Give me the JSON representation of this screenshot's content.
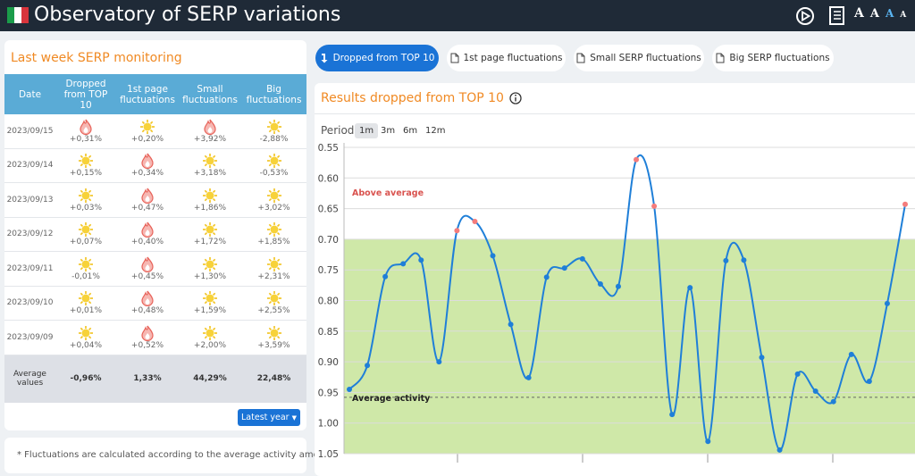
{
  "header": {
    "title": "Observatory of SERP variations",
    "font_sizes": [
      "A",
      "A",
      "A",
      "A"
    ]
  },
  "monitoring": {
    "title": "Last week SERP monitoring",
    "columns": [
      "Date",
      "Dropped from TOP 10",
      "1st page fluctuations",
      "Small fluctuations",
      "Big fluctuations"
    ],
    "rows": [
      {
        "date": "2023/09/15",
        "cells": [
          {
            "icon": "fire",
            "text": "+0,31%"
          },
          {
            "icon": "sun",
            "text": "+0,20%"
          },
          {
            "icon": "fire",
            "text": "+3,92%"
          },
          {
            "icon": "sun",
            "text": "-2,88%"
          }
        ]
      },
      {
        "date": "2023/09/14",
        "cells": [
          {
            "icon": "sun",
            "text": "+0,15%"
          },
          {
            "icon": "fire",
            "text": "+0,34%"
          },
          {
            "icon": "sun",
            "text": "+3,18%"
          },
          {
            "icon": "sun",
            "text": "-0,53%"
          }
        ]
      },
      {
        "date": "2023/09/13",
        "cells": [
          {
            "icon": "sun",
            "text": "+0,03%"
          },
          {
            "icon": "fire",
            "text": "+0,47%"
          },
          {
            "icon": "sun",
            "text": "+1,86%"
          },
          {
            "icon": "sun",
            "text": "+3,02%"
          }
        ]
      },
      {
        "date": "2023/09/12",
        "cells": [
          {
            "icon": "sun",
            "text": "+0,07%"
          },
          {
            "icon": "fire",
            "text": "+0,40%"
          },
          {
            "icon": "sun",
            "text": "+1,72%"
          },
          {
            "icon": "sun",
            "text": "+1,85%"
          }
        ]
      },
      {
        "date": "2023/09/11",
        "cells": [
          {
            "icon": "sun",
            "text": "-0,01%"
          },
          {
            "icon": "fire",
            "text": "+0,45%"
          },
          {
            "icon": "sun",
            "text": "+1,30%"
          },
          {
            "icon": "sun",
            "text": "+2,31%"
          }
        ]
      },
      {
        "date": "2023/09/10",
        "cells": [
          {
            "icon": "sun",
            "text": "+0,01%"
          },
          {
            "icon": "fire",
            "text": "+0,48%"
          },
          {
            "icon": "sun",
            "text": "+1,59%"
          },
          {
            "icon": "sun",
            "text": "+2,55%"
          }
        ]
      },
      {
        "date": "2023/09/09",
        "cells": [
          {
            "icon": "sun",
            "text": "+0,04%"
          },
          {
            "icon": "fire",
            "text": "+0,52%"
          },
          {
            "icon": "sun",
            "text": "+2,00%"
          },
          {
            "icon": "sun",
            "text": "+3,59%"
          }
        ]
      }
    ],
    "average": {
      "label": "Average values",
      "cells": [
        "-0,96%",
        "1,33%",
        "44,29%",
        "22,48%"
      ]
    },
    "button": "Latest year",
    "note": "* Fluctuations are calculated according to the average activity among"
  },
  "tabs": {
    "items": [
      "Dropped from TOP 10",
      "1st page fluctuations",
      "Small SERP fluctuations",
      "Big SERP fluctuations"
    ],
    "active": 0
  },
  "panel": {
    "title": "Results dropped from TOP 10",
    "period_label": "Period",
    "periods": [
      "1m",
      "3m",
      "6m",
      "12m"
    ],
    "active_period": 0
  },
  "chart_data": {
    "type": "line",
    "y_inverted": true,
    "ylim": [
      0.55,
      1.05
    ],
    "yticks": [
      0.55,
      {
        "value": 0.6,
        "label": "0.60"
      },
      0.65,
      {
        "value": 0.7,
        "label": "0.70"
      },
      0.75,
      {
        "value": 0.8,
        "label": "0.80"
      },
      0.85,
      {
        "value": 0.9,
        "label": "0.90"
      },
      0.95,
      {
        "value": 1.0,
        "label": "1.00"
      },
      1.05
    ],
    "grid": true,
    "color": "#1f7fd8",
    "highlight_color": "#f47c7c",
    "band": {
      "from": 0.7,
      "color": "#cfe8a8"
    },
    "average": 0.958,
    "annotations": [
      "Above average",
      "Average activity"
    ],
    "values": [
      0.945,
      0.906,
      0.761,
      0.74,
      0.734,
      0.9,
      0.686,
      0.671,
      0.727,
      0.839,
      0.926,
      0.762,
      0.747,
      0.732,
      0.773,
      0.777,
      0.57,
      0.646,
      0.986,
      0.779,
      1.03,
      0.735,
      0.734,
      0.893,
      1.044,
      0.92,
      0.948,
      0.965,
      0.888,
      0.932,
      0.805,
      0.643
    ]
  }
}
